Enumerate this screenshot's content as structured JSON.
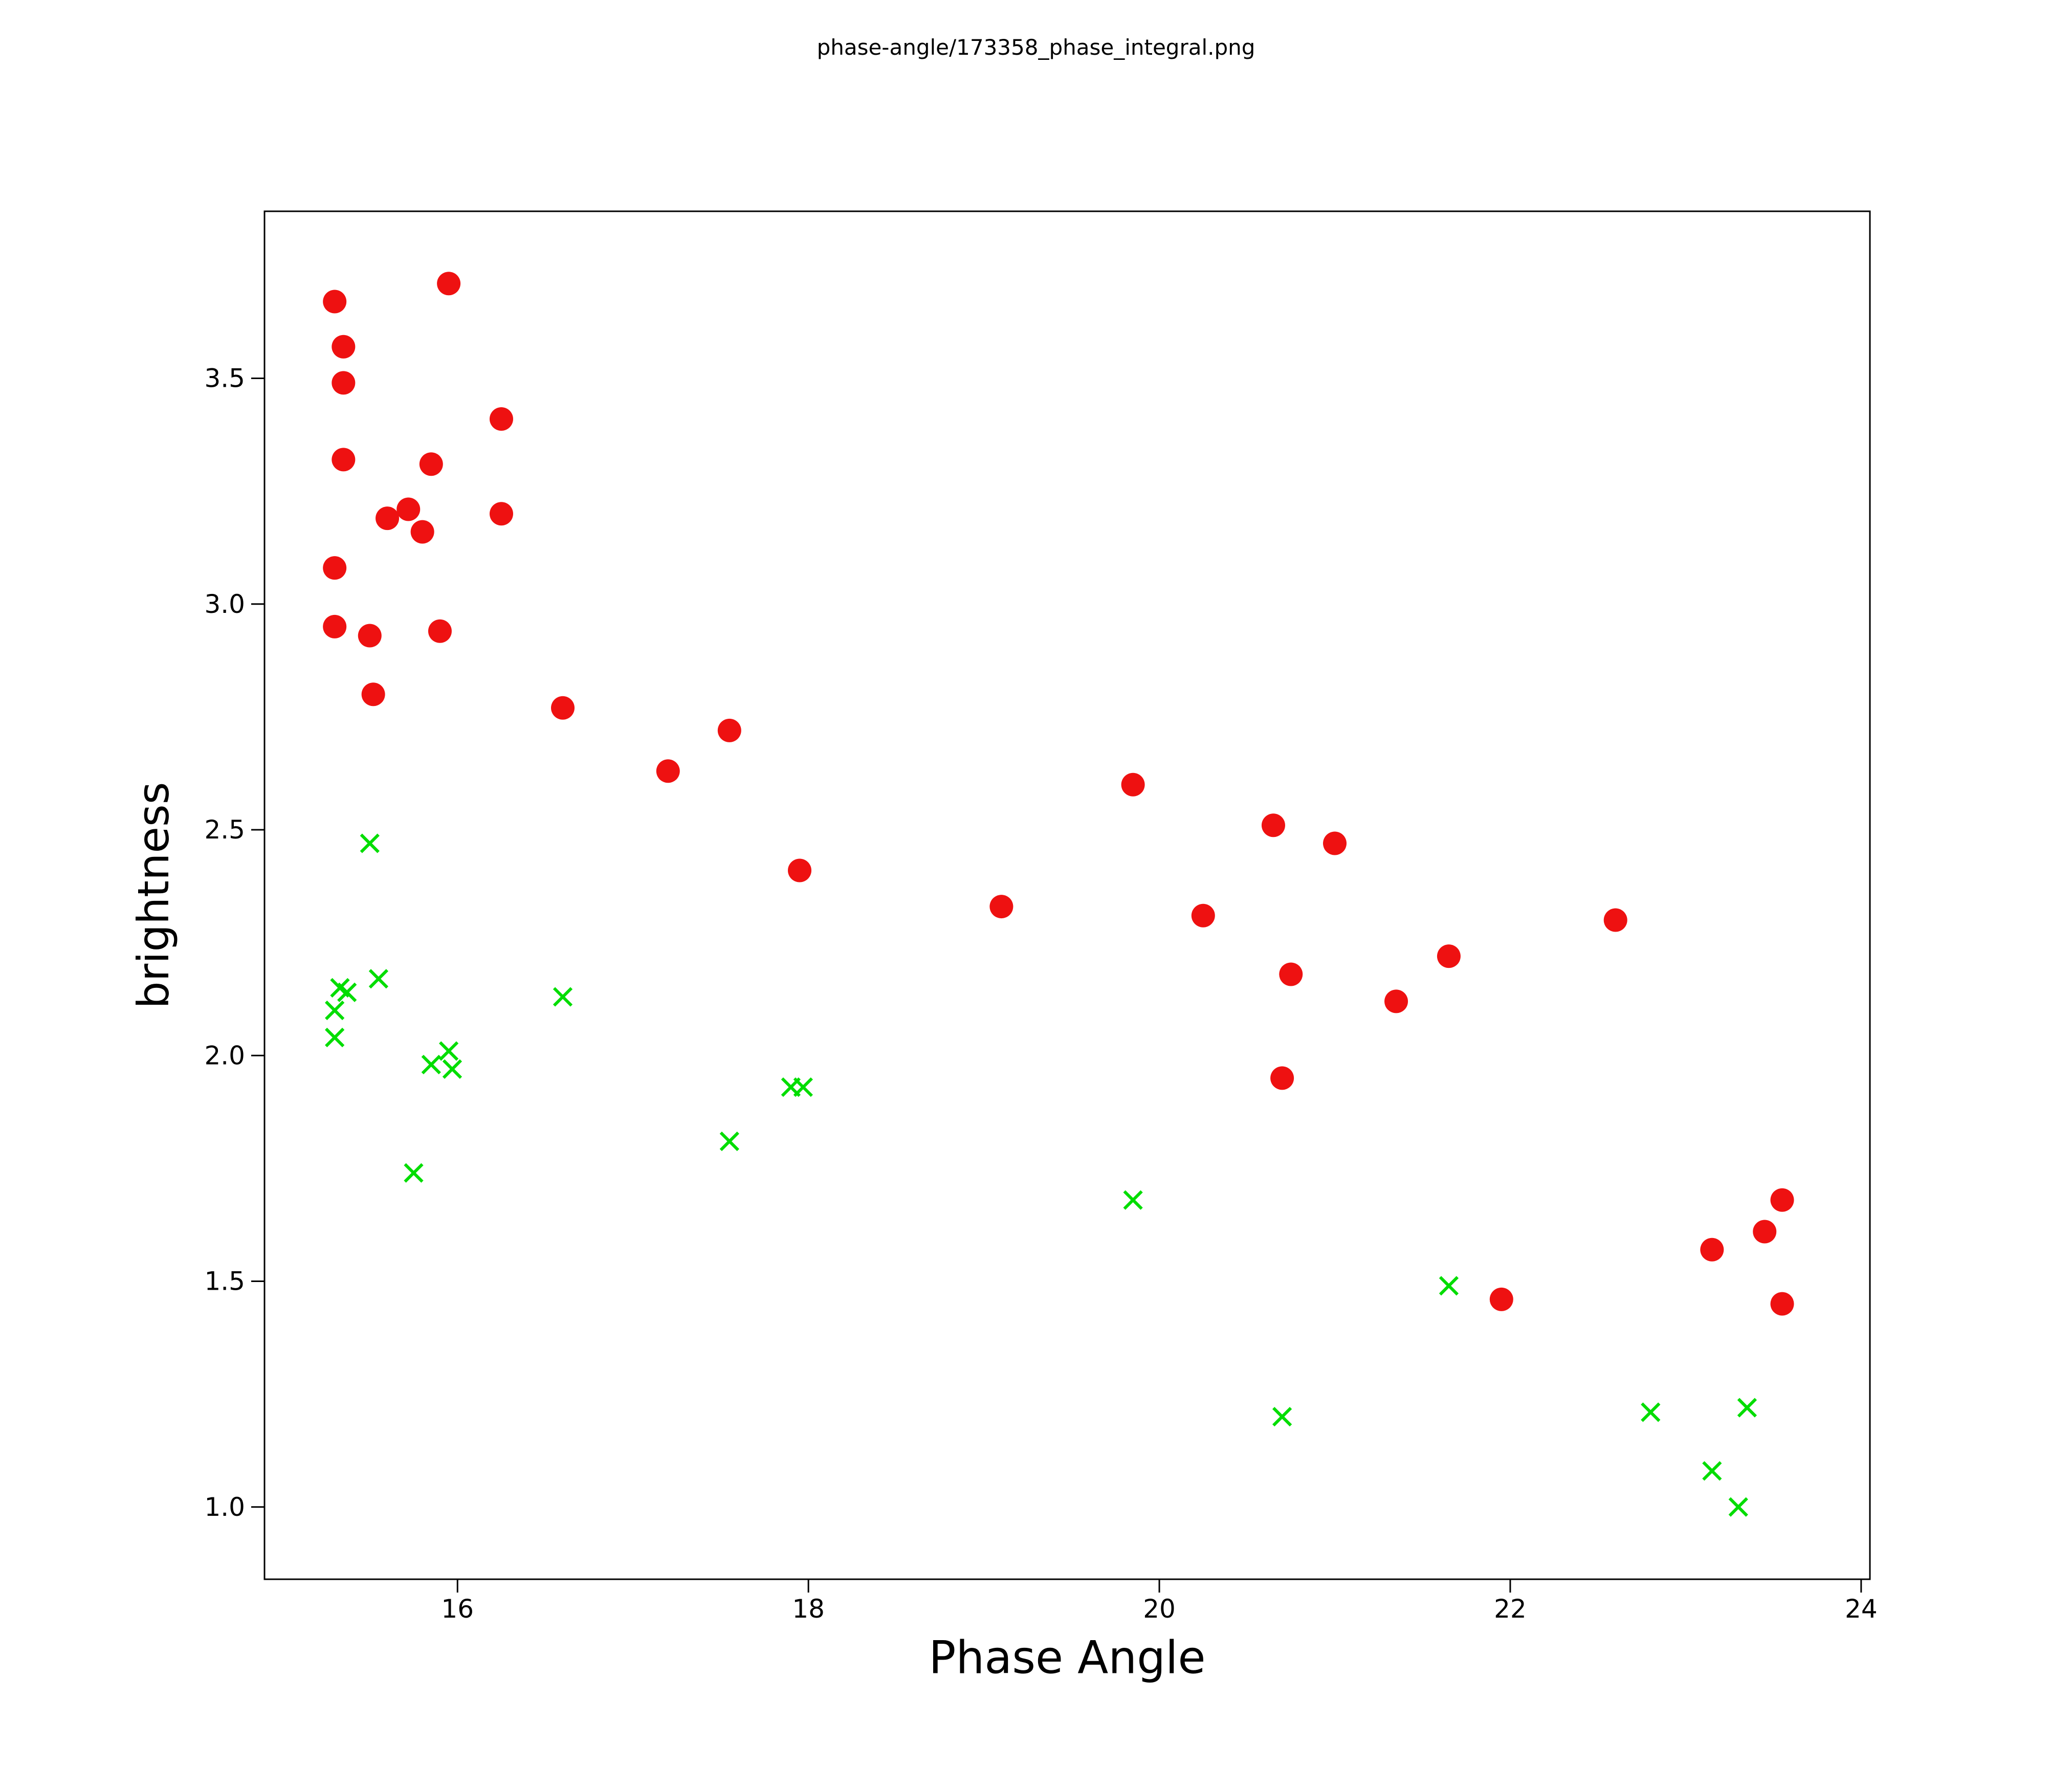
{
  "page": {
    "title": "phase-angle/173358_phase_integral.png"
  },
  "chart_data": {
    "type": "scatter",
    "title": "phase-angle/173358_phase_integral.png",
    "xlabel": "Phase Angle",
    "ylabel": "brightness",
    "xlim": [
      14.9,
      24.05
    ],
    "ylim": [
      0.84,
      3.87
    ],
    "grid": false,
    "legend": "none",
    "x_ticks": [
      {
        "value": 16,
        "label": "16"
      },
      {
        "value": 18,
        "label": "18"
      },
      {
        "value": 20,
        "label": "20"
      },
      {
        "value": 22,
        "label": "22"
      },
      {
        "value": 24,
        "label": "24"
      }
    ],
    "y_ticks": [
      {
        "value": 1.0,
        "label": "1.0"
      },
      {
        "value": 1.5,
        "label": "1.5"
      },
      {
        "value": 2.0,
        "label": "2.0"
      },
      {
        "value": 2.5,
        "label": "2.5"
      },
      {
        "value": 3.0,
        "label": "3.0"
      },
      {
        "value": 3.5,
        "label": "3.5"
      }
    ],
    "series": [
      {
        "name": "red-circles",
        "marker": "circle",
        "color": "#ee1111",
        "size": 23,
        "points": [
          [
            15.3,
            3.67
          ],
          [
            15.35,
            3.57
          ],
          [
            15.35,
            3.49
          ],
          [
            15.95,
            3.71
          ],
          [
            16.25,
            3.41
          ],
          [
            15.35,
            3.32
          ],
          [
            15.85,
            3.31
          ],
          [
            15.6,
            3.19
          ],
          [
            15.72,
            3.21
          ],
          [
            15.8,
            3.16
          ],
          [
            16.25,
            3.2
          ],
          [
            15.3,
            3.08
          ],
          [
            15.3,
            2.95
          ],
          [
            15.5,
            2.93
          ],
          [
            15.9,
            2.94
          ],
          [
            15.52,
            2.8
          ],
          [
            16.6,
            2.77
          ],
          [
            17.55,
            2.72
          ],
          [
            17.2,
            2.63
          ],
          [
            19.85,
            2.6
          ],
          [
            20.65,
            2.51
          ],
          [
            21.0,
            2.47
          ],
          [
            17.95,
            2.41
          ],
          [
            19.1,
            2.33
          ],
          [
            20.25,
            2.31
          ],
          [
            22.6,
            2.3
          ],
          [
            21.65,
            2.22
          ],
          [
            20.75,
            2.18
          ],
          [
            21.35,
            2.12
          ],
          [
            20.7,
            1.95
          ],
          [
            23.55,
            1.68
          ],
          [
            23.45,
            1.61
          ],
          [
            23.15,
            1.57
          ],
          [
            21.95,
            1.46
          ],
          [
            23.55,
            1.45
          ]
        ]
      },
      {
        "name": "green-crosses",
        "marker": "x",
        "color": "#00dd00",
        "size": 17,
        "stroke_width": 6,
        "points": [
          [
            15.5,
            2.47
          ],
          [
            15.55,
            2.17
          ],
          [
            15.33,
            2.15
          ],
          [
            15.37,
            2.14
          ],
          [
            15.3,
            2.1
          ],
          [
            15.3,
            2.04
          ],
          [
            16.6,
            2.13
          ],
          [
            15.95,
            2.01
          ],
          [
            15.85,
            1.98
          ],
          [
            15.97,
            1.97
          ],
          [
            17.9,
            1.93
          ],
          [
            17.97,
            1.93
          ],
          [
            17.55,
            1.81
          ],
          [
            15.75,
            1.74
          ],
          [
            19.85,
            1.68
          ],
          [
            21.65,
            1.49
          ],
          [
            20.7,
            1.2
          ],
          [
            22.8,
            1.21
          ],
          [
            23.35,
            1.22
          ],
          [
            23.15,
            1.08
          ],
          [
            23.3,
            1.0
          ]
        ]
      }
    ]
  }
}
